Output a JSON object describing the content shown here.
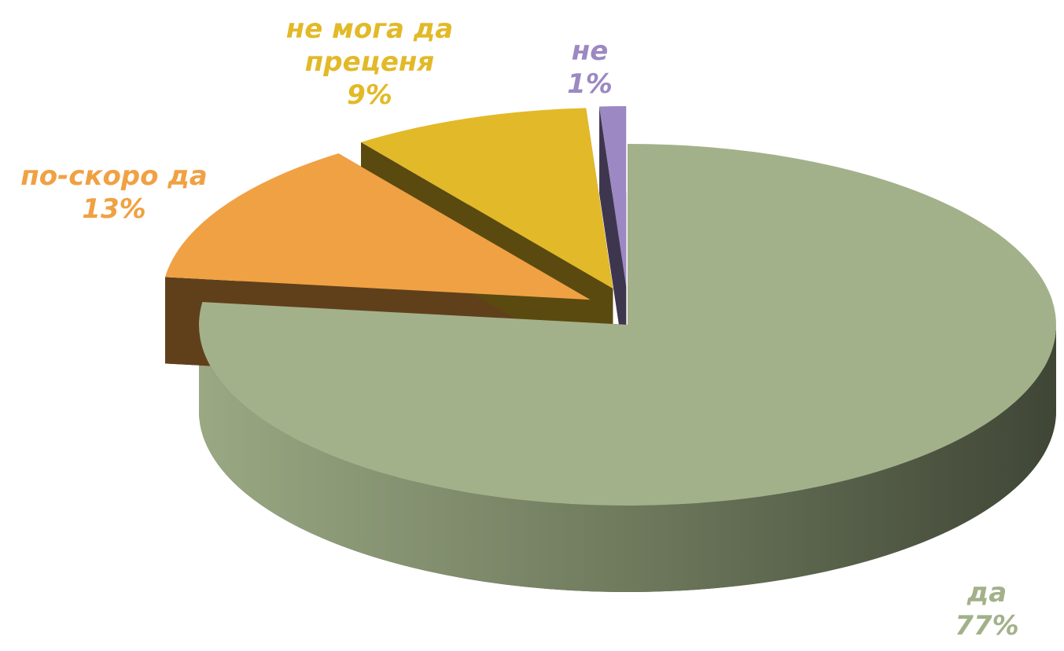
{
  "chart_data": {
    "type": "pie",
    "categories": [
      "да",
      "по-скоро да",
      "не мога да преценя",
      "не"
    ],
    "values": [
      77,
      13,
      9,
      1
    ],
    "value_labels": [
      "77%",
      "13%",
      "9%",
      "1%"
    ],
    "colors": [
      "#a3b18a",
      "#f0a143",
      "#e2b928",
      "#9c88c2"
    ]
  }
}
